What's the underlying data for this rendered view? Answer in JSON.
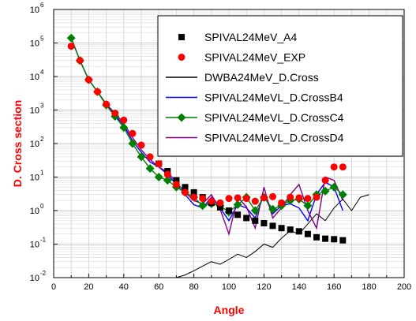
{
  "chart_data": {
    "type": "scatter",
    "xlabel": "Angle",
    "ylabel": "D. Cross section",
    "xlim": [
      0,
      200
    ],
    "ylim": [
      0.01,
      1000000
    ],
    "y_scale": "log",
    "grid": true,
    "legend_position": "top-right",
    "x_ticks": [
      "0",
      "20",
      "40",
      "60",
      "80",
      "100",
      "120",
      "140",
      "160",
      "180",
      "200"
    ],
    "y_ticks": [
      {
        "base": "10",
        "exp": "-2"
      },
      {
        "base": "10",
        "exp": "-1"
      },
      {
        "base": "10",
        "exp": "0"
      },
      {
        "base": "10",
        "exp": "1"
      },
      {
        "base": "10",
        "exp": "2"
      },
      {
        "base": "10",
        "exp": "3"
      },
      {
        "base": "10",
        "exp": "4"
      },
      {
        "base": "10",
        "exp": "5"
      },
      {
        "base": "10",
        "exp": "6"
      }
    ],
    "series": [
      {
        "name": "SPIVAL24MeV_A4",
        "style": "square",
        "color": "#000000",
        "x": [
          60,
          65,
          70,
          75,
          80,
          85,
          90,
          95,
          100,
          105,
          110,
          115,
          120,
          125,
          130,
          135,
          140,
          145,
          150,
          155,
          160,
          165
        ],
        "y": [
          25,
          15,
          8,
          5,
          3.5,
          2.5,
          1.7,
          1.25,
          1.0,
          0.75,
          0.6,
          0.5,
          0.42,
          0.35,
          0.3,
          0.27,
          0.24,
          0.2,
          0.16,
          0.145,
          0.14,
          0.13
        ]
      },
      {
        "name": "SPIVAL24MeV_EXP",
        "style": "circle",
        "color": "#ff0000",
        "x": [
          10,
          15,
          20,
          25,
          30,
          35,
          40,
          45,
          50,
          55,
          60,
          65,
          70,
          75,
          80,
          85,
          90,
          95,
          100,
          105,
          110,
          115,
          120,
          125,
          130,
          135,
          140,
          145,
          150,
          155,
          160,
          165
        ],
        "y": [
          80000,
          30000,
          8000,
          3500,
          1500,
          800,
          500,
          200,
          90,
          40,
          25,
          12,
          6,
          3.5,
          2.5,
          2.3,
          1.9,
          1.7,
          2.3,
          2.4,
          2.3,
          1.9,
          2.4,
          2.6,
          1.7,
          2.5,
          2.4,
          2.3,
          2.5,
          8,
          20,
          20
        ]
      },
      {
        "name": "DWBA24MeV_D.Cross",
        "style": "line",
        "color": "#000000",
        "x": [
          70,
          75,
          80,
          85,
          90,
          95,
          100,
          105,
          110,
          115,
          120,
          125,
          130,
          135,
          140,
          145,
          150,
          155,
          160,
          165,
          170,
          175,
          180
        ],
        "y": [
          0.01,
          0.012,
          0.016,
          0.022,
          0.03,
          0.025,
          0.035,
          0.05,
          0.04,
          0.06,
          0.1,
          0.08,
          0.15,
          0.25,
          0.2,
          0.4,
          0.8,
          0.5,
          1.2,
          2.2,
          1.0,
          2.5,
          3.0
        ]
      },
      {
        "name": "SPIVAL24MeVL_D.CrossB4",
        "style": "line",
        "color": "#0000ff",
        "x": [
          10,
          15,
          20,
          25,
          30,
          35,
          40,
          45,
          50,
          55,
          60,
          65,
          70,
          75,
          80,
          85,
          90,
          95,
          100,
          105,
          110,
          115,
          120,
          125,
          130,
          135,
          140,
          145,
          150,
          155,
          160,
          165
        ],
        "y": [
          140000,
          30000,
          8000,
          3500,
          1500,
          700,
          350,
          120,
          55,
          28,
          20,
          12,
          6,
          3,
          1.5,
          1.2,
          2.5,
          1.2,
          0.5,
          1.5,
          1.2,
          0.6,
          3,
          0.8,
          1.4,
          1.6,
          1.2,
          0.5,
          3,
          7,
          5,
          1.0
        ]
      },
      {
        "name": "SPIVAL24MeVL_D.CrossC4",
        "style": "diamond-line",
        "color": "#008000",
        "x": [
          10,
          15,
          20,
          25,
          30,
          35,
          40,
          45,
          50,
          55,
          60,
          65,
          70,
          75,
          80,
          85,
          90,
          95,
          100,
          105,
          110,
          115,
          120,
          125,
          130,
          135,
          140,
          145,
          150,
          155,
          160,
          165
        ],
        "y": [
          140000,
          30000,
          8000,
          3500,
          1400,
          650,
          300,
          100,
          40,
          18,
          10,
          8,
          5,
          3.5,
          2.5,
          1.4,
          1.6,
          1.4,
          0.9,
          1.5,
          2.5,
          1.0,
          2.5,
          1.1,
          1.4,
          2.0,
          2.2,
          1.4,
          3,
          3.8,
          5,
          3
        ]
      },
      {
        "name": "SPIVAL24MeVL_D.CrossD4",
        "style": "line",
        "color": "#800080",
        "x": [
          10,
          15,
          20,
          25,
          30,
          35,
          40,
          45,
          50,
          55,
          60,
          65,
          70,
          75,
          80,
          85,
          90,
          95,
          100,
          105,
          110,
          115,
          120,
          125,
          130,
          135,
          140,
          145,
          150,
          155,
          160,
          165
        ],
        "y": [
          140000,
          30000,
          8000,
          3500,
          1500,
          800,
          400,
          150,
          65,
          33,
          20,
          14,
          7,
          3.5,
          2,
          1.6,
          3,
          1.1,
          0.2,
          2.5,
          1.3,
          0.3,
          5,
          0.6,
          1.2,
          3,
          6,
          1.0,
          0.3,
          10,
          8,
          2
        ]
      }
    ]
  }
}
